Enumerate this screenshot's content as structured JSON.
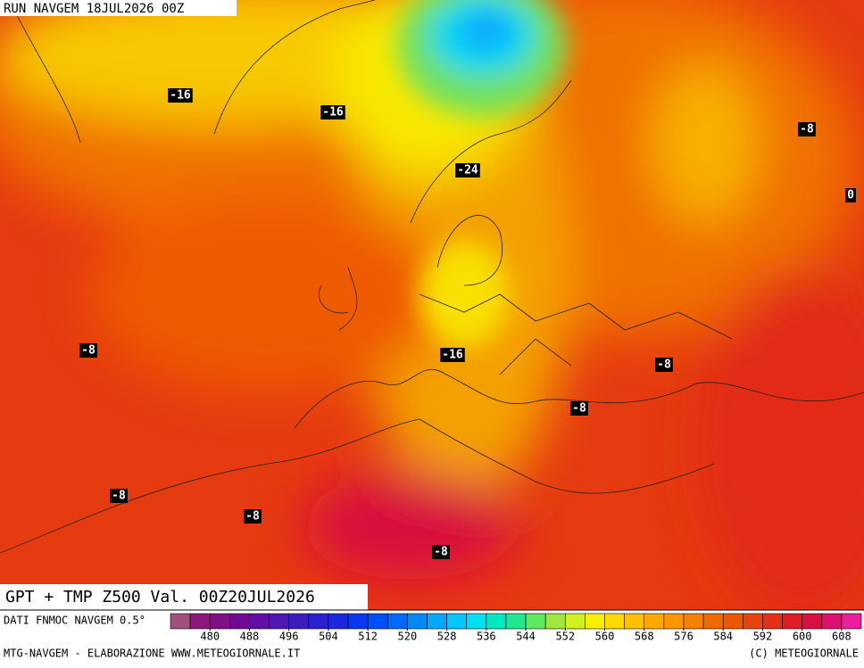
{
  "header": {
    "run": "RUN NAVGEM 18JUL2026 00Z"
  },
  "map": {
    "title": "GPT + TMP Z500 Val. 00Z20JUL2026",
    "contour_labels": [
      -16,
      -16,
      -24,
      -8,
      0,
      -8,
      -16,
      -8,
      -8,
      -8,
      -8,
      -8
    ]
  },
  "colorbar": {
    "caption": "DATI FNMOC NAVGEM 0.5°",
    "range": [
      472,
      612
    ],
    "colors": [
      "#a0507a",
      "#8c1a78",
      "#801085",
      "#700a90",
      "#600fa0",
      "#5018b0",
      "#3c1cc0",
      "#2a20d0",
      "#1a28e0",
      "#0a38f0",
      "#0050ff",
      "#0068ff",
      "#0088ff",
      "#00a8ff",
      "#00c8ff",
      "#00e0f0",
      "#00e8c0",
      "#20e890",
      "#60e860",
      "#a0e840",
      "#d0f020",
      "#f8f000",
      "#ffd800",
      "#ffc000",
      "#ffa800",
      "#ff9400",
      "#f88000",
      "#f06c00",
      "#ec5800",
      "#e84410",
      "#e43018",
      "#e01c28",
      "#d81040",
      "#e01070",
      "#e8209c"
    ],
    "ticks": [
      480,
      488,
      496,
      504,
      512,
      520,
      528,
      536,
      544,
      552,
      560,
      568,
      576,
      584,
      592,
      600,
      608
    ]
  },
  "footer": {
    "left": "MTG-NAVGEM - ELABORAZIONE WWW.METEOGIORNALE.IT",
    "right": "(C) METEOGIORNALE"
  }
}
